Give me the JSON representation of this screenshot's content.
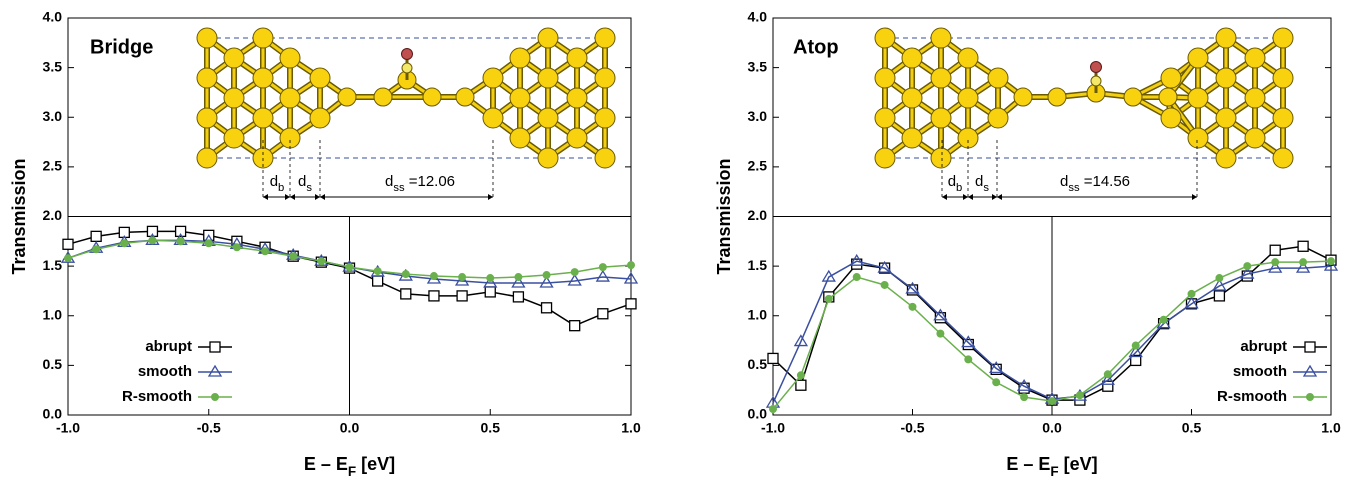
{
  "chart_data": [
    {
      "type": "line",
      "panel_label": "Bridge",
      "ylabel": "Transmission",
      "xlabel": {
        "main": "E – E",
        "sub": "F",
        "suffix": "  [eV]"
      },
      "dimension_labels": [
        {
          "main": "d",
          "sub": "b"
        },
        {
          "main": "d",
          "sub": "s"
        },
        {
          "main": "d",
          "sub": "ss",
          "suffix": " =12.06"
        }
      ],
      "x": [
        -1.0,
        -0.9,
        -0.8,
        -0.7,
        -0.6,
        -0.5,
        -0.4,
        -0.3,
        -0.2,
        -0.1,
        0.0,
        0.1,
        0.2,
        0.3,
        0.4,
        0.5,
        0.6,
        0.7,
        0.8,
        0.9,
        1.0
      ],
      "xlim": [
        -1,
        1
      ],
      "ylim": [
        0,
        4
      ],
      "xticks": [
        {
          "value": -1,
          "label": "-1.0"
        },
        -0.5,
        {
          "value": 0,
          "label": "0.0"
        },
        0.5,
        {
          "value": 1,
          "label": "1.0"
        }
      ],
      "yticks": [
        {
          "value": 0,
          "label": "0.0"
        },
        0.5,
        {
          "value": 1,
          "label": "1.0"
        },
        1.5,
        {
          "value": 2,
          "label": "2.0"
        },
        2.5,
        {
          "value": 3,
          "label": "3.0"
        },
        3.5,
        {
          "value": 4,
          "label": "4.0"
        }
      ],
      "legend": "lower left",
      "series": [
        {
          "name": "abrupt",
          "color": "#000000",
          "marker": "square",
          "values": [
            1.72,
            1.8,
            1.84,
            1.85,
            1.85,
            1.81,
            1.75,
            1.69,
            1.6,
            1.54,
            1.48,
            1.35,
            1.22,
            1.2,
            1.2,
            1.24,
            1.19,
            1.08,
            0.9,
            1.02,
            1.12
          ]
        },
        {
          "name": "smooth",
          "color": "#3a4fa0",
          "marker": "triangle",
          "values": [
            1.58,
            1.68,
            1.74,
            1.76,
            1.76,
            1.75,
            1.72,
            1.67,
            1.61,
            1.55,
            1.49,
            1.44,
            1.4,
            1.37,
            1.35,
            1.33,
            1.33,
            1.33,
            1.35,
            1.39,
            1.37
          ]
        },
        {
          "name": "R-smooth",
          "color": "#6ab04c",
          "marker": "circle",
          "values": [
            1.58,
            1.67,
            1.73,
            1.76,
            1.75,
            1.73,
            1.69,
            1.65,
            1.6,
            1.55,
            1.49,
            1.45,
            1.42,
            1.4,
            1.39,
            1.38,
            1.39,
            1.41,
            1.44,
            1.49,
            1.51
          ]
        }
      ]
    },
    {
      "type": "line",
      "panel_label": "Atop",
      "ylabel": "Transmission",
      "xlabel": {
        "main": "E – E",
        "sub": "F",
        "suffix": "  [eV]"
      },
      "dimension_labels": [
        {
          "main": "d",
          "sub": "b"
        },
        {
          "main": "d",
          "sub": "s"
        },
        {
          "main": "d",
          "sub": "ss",
          "suffix": " =14.56"
        }
      ],
      "x": [
        -1.0,
        -0.9,
        -0.8,
        -0.7,
        -0.6,
        -0.5,
        -0.4,
        -0.3,
        -0.2,
        -0.1,
        0.0,
        0.1,
        0.2,
        0.3,
        0.4,
        0.5,
        0.6,
        0.7,
        0.8,
        0.9,
        1.0
      ],
      "xlim": [
        -1,
        1
      ],
      "ylim": [
        0,
        4
      ],
      "xticks": [
        {
          "value": -1,
          "label": "-1.0"
        },
        -0.5,
        {
          "value": 0,
          "label": "0.0"
        },
        0.5,
        {
          "value": 1,
          "label": "1.0"
        }
      ],
      "yticks": [
        {
          "value": 0,
          "label": "0.0"
        },
        0.5,
        {
          "value": 1,
          "label": "1.0"
        },
        1.5,
        {
          "value": 2,
          "label": "2.0"
        },
        2.5,
        {
          "value": 3,
          "label": "3.0"
        },
        3.5,
        {
          "value": 4,
          "label": "4.0"
        }
      ],
      "legend": "lower right",
      "series": [
        {
          "name": "abrupt",
          "color": "#000000",
          "marker": "square",
          "values": [
            0.57,
            0.3,
            1.19,
            1.52,
            1.48,
            1.26,
            0.98,
            0.71,
            0.46,
            0.27,
            0.15,
            0.15,
            0.29,
            0.55,
            0.92,
            1.12,
            1.2,
            1.4,
            1.66,
            1.7,
            1.56
          ]
        },
        {
          "name": "smooth",
          "color": "#3a4fa0",
          "marker": "triangle",
          "values": [
            0.12,
            0.74,
            1.39,
            1.55,
            1.48,
            1.27,
            1.0,
            0.73,
            0.47,
            0.29,
            0.16,
            0.19,
            0.35,
            0.63,
            0.92,
            1.12,
            1.3,
            1.42,
            1.48,
            1.48,
            1.5
          ]
        },
        {
          "name": "R-smooth",
          "color": "#6ab04c",
          "marker": "circle",
          "values": [
            0.06,
            0.4,
            1.17,
            1.39,
            1.31,
            1.09,
            0.82,
            0.56,
            0.33,
            0.18,
            0.14,
            0.2,
            0.41,
            0.7,
            0.96,
            1.22,
            1.38,
            1.5,
            1.54,
            1.54,
            1.55
          ]
        }
      ]
    }
  ]
}
